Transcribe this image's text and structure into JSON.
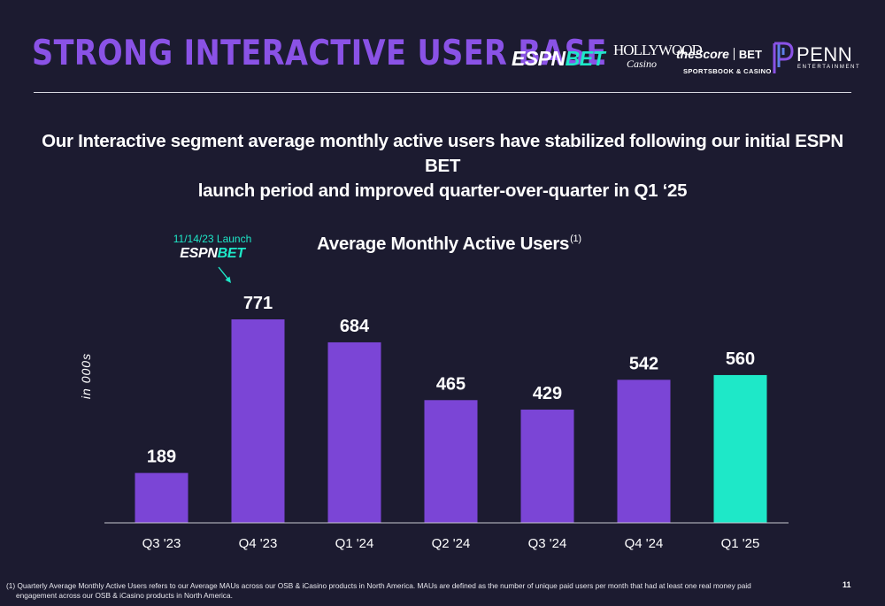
{
  "header": {
    "title": "STRONG INTERACTIVE USER BASE",
    "logos": {
      "espn_bet": {
        "espn": "ESPN",
        "bet": "BET"
      },
      "hollywood": {
        "line1": "HOLLYWOOD",
        "line2": "Casino"
      },
      "thescore": {
        "name": "theScore",
        "bet": "BET",
        "sub": "SPORTSBOOK & CASINO"
      },
      "penn": {
        "name": "PENN",
        "sub": "ENTERTAINMENT"
      }
    }
  },
  "subtitle": {
    "line1": "Our Interactive segment average monthly active users have stabilized following our initial ESPN BET",
    "line2": "launch period and improved quarter-over-quarter in Q1 ‘25"
  },
  "annotation": {
    "launch_text": "11/14/23 Launch",
    "logo_espn": "ESPN",
    "logo_bet": "BET"
  },
  "chart_data": {
    "type": "bar",
    "title": "Average Monthly Active Users",
    "title_footnote": "(1)",
    "ylabel": "in 000s",
    "xlabel": "",
    "categories": [
      "Q3 '23",
      "Q4 '23",
      "Q1 '24",
      "Q2 '24",
      "Q3 '24",
      "Q4 '24",
      "Q1 '25"
    ],
    "values": [
      189,
      771,
      684,
      465,
      429,
      542,
      560
    ],
    "data_labels": [
      "189",
      "771",
      "684",
      "465",
      "429",
      "542",
      "560"
    ],
    "ylim": [
      0,
      800
    ],
    "grid": false,
    "legend": "none",
    "colors": [
      "#7b45d6",
      "#7b45d6",
      "#7b45d6",
      "#7b45d6",
      "#7b45d6",
      "#7b45d6",
      "#1ee8c8"
    ]
  },
  "footnote": {
    "line1": "(1) Quarterly Average Monthly Active Users refers to our Average MAUs across our OSB & iCasino products in North America. MAUs are defined as the number of unique paid users per month that had at least one real money paid",
    "line2": "engagement across our OSB & iCasino products in North America."
  },
  "page_number": "11",
  "colors": {
    "background": "#1c1b30",
    "title": "#8a52e6",
    "accent": "#1ee8c8",
    "bar": "#7b45d6"
  }
}
